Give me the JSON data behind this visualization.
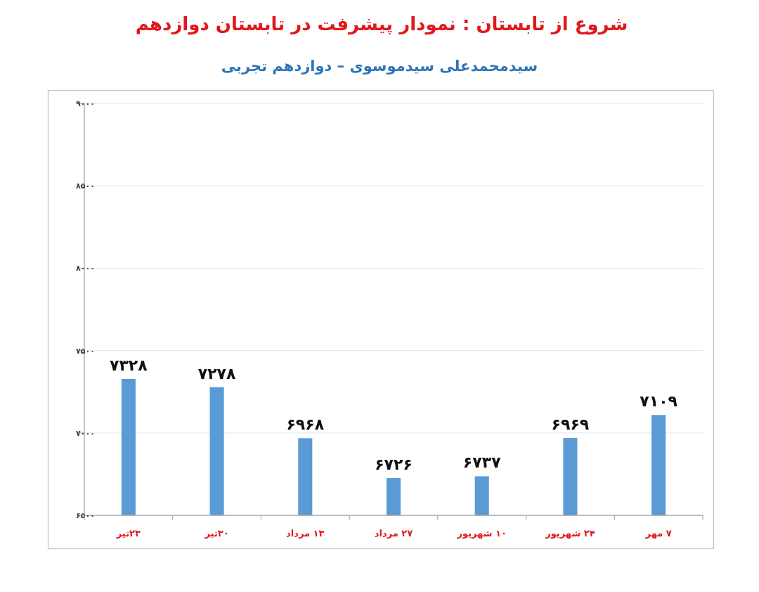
{
  "chart_data": {
    "type": "bar",
    "title": "شروع از تابستان : نمودار پیشرفت در تابستان دوازدهم",
    "subtitle": "سیدمحمدعلی سیدموسوی – دوازدهم تجربی",
    "categories": [
      "۲۳تیر",
      "۳۰تیر",
      "۱۳ مرداد",
      "۲۷ مرداد",
      "۱۰ شهریور",
      "۲۴ شهریور",
      "۷ مهر"
    ],
    "values": [
      7328,
      7278,
      6968,
      6726,
      6737,
      6969,
      7109
    ],
    "value_labels": [
      "۷۳۲۸",
      "۷۲۷۸",
      "۶۹۶۸",
      "۶۷۲۶",
      "۶۷۳۷",
      "۶۹۶۹",
      "۷۱۰۹"
    ],
    "color": "#5b9bd5",
    "ylim": [
      6500,
      9000
    ],
    "yticks": [
      {
        "value": 6500,
        "label": "۶۵۰۰"
      },
      {
        "value": 7000,
        "label": "۷۰۰۰"
      },
      {
        "value": 7500,
        "label": "۷۵۰۰"
      },
      {
        "value": 8000,
        "label": "۸۰۰۰"
      },
      {
        "value": 8500,
        "label": "۸۵۰۰"
      },
      {
        "value": 9000,
        "label": "۹۰۰۰"
      }
    ],
    "grid": "y"
  }
}
